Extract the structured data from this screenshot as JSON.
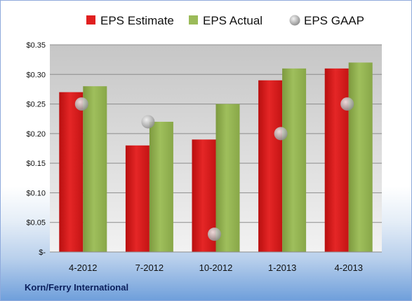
{
  "footer": {
    "company": "Korn/Ferry International"
  },
  "chart_data": {
    "type": "bar",
    "categories": [
      "4-2012",
      "7-2012",
      "10-2012",
      "1-2013",
      "4-2013"
    ],
    "series": [
      {
        "name": "EPS Estimate",
        "kind": "bar",
        "color": "#e01f1f",
        "values": [
          0.27,
          0.18,
          0.19,
          0.29,
          0.31
        ]
      },
      {
        "name": "EPS Actual",
        "kind": "bar",
        "color": "#9bbb59",
        "values": [
          0.28,
          0.22,
          0.25,
          0.31,
          0.32
        ]
      },
      {
        "name": "EPS GAAP",
        "kind": "marker",
        "color": "#b8b8b8",
        "values": [
          0.25,
          0.22,
          0.03,
          0.2,
          0.25
        ]
      }
    ],
    "yticks": [
      {
        "value": 0,
        "label": "$-"
      },
      {
        "value": 0.05,
        "label": "$0.05"
      },
      {
        "value": 0.1,
        "label": "$0.10"
      },
      {
        "value": 0.15,
        "label": "$0.15"
      },
      {
        "value": 0.2,
        "label": "$0.20"
      },
      {
        "value": 0.25,
        "label": "$0.25"
      },
      {
        "value": 0.3,
        "label": "$0.30"
      },
      {
        "value": 0.35,
        "label": "$0.35"
      }
    ],
    "ylim": [
      0,
      0.35
    ],
    "grid": true,
    "legend_position": "top"
  }
}
